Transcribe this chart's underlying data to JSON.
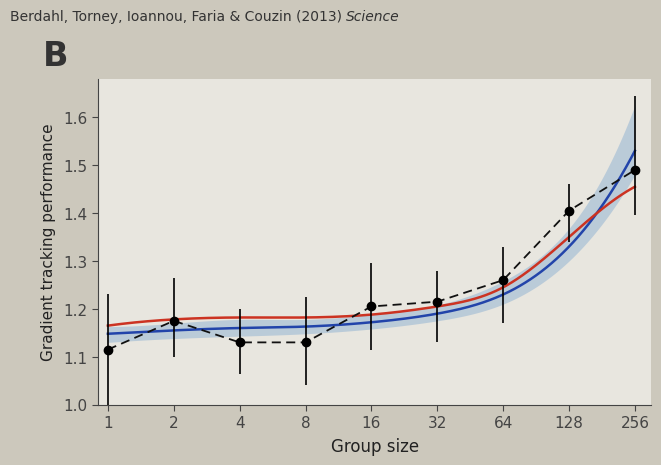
{
  "title_regular": "Berdahl, Torney, Ioannou, Faria & Couzin (2013) ",
  "title_italic": "Science",
  "panel_label": "B",
  "xlabel": "Group size",
  "ylabel": "Gradient tracking performance",
  "background_color": "#ccc8bc",
  "plot_background_color": "#e8e6df",
  "x_ticks": [
    1,
    2,
    4,
    8,
    16,
    32,
    64,
    128,
    256
  ],
  "ylim": [
    1.0,
    1.68
  ],
  "yticks": [
    1.0,
    1.1,
    1.2,
    1.3,
    1.4,
    1.5,
    1.6
  ],
  "data_points": {
    "x": [
      1,
      2,
      4,
      8,
      16,
      32,
      64,
      128,
      256
    ],
    "y": [
      1.115,
      1.175,
      1.13,
      1.13,
      1.205,
      1.215,
      1.26,
      1.405,
      1.49
    ],
    "yerr_low": [
      0.115,
      0.075,
      0.065,
      0.09,
      0.09,
      0.085,
      0.09,
      0.065,
      0.095
    ],
    "yerr_high": [
      0.115,
      0.09,
      0.07,
      0.095,
      0.09,
      0.065,
      0.07,
      0.055,
      0.155
    ]
  },
  "blue_line_color": "#2244aa",
  "red_line_color": "#cc3322",
  "blue_fill_color": "#6699cc",
  "blue_fill_alpha": 0.35,
  "dashed_line_color": "#111111",
  "blue_curve_base": [
    1.148,
    1.155,
    1.16,
    1.163,
    1.172,
    1.19,
    1.23,
    1.33,
    1.53
  ],
  "red_curve_base": [
    1.165,
    1.178,
    1.182,
    1.182,
    1.188,
    1.205,
    1.245,
    1.35,
    1.455
  ],
  "blue_ci_low": [
    1.13,
    1.138,
    1.143,
    1.148,
    1.158,
    1.175,
    1.21,
    1.3,
    1.48
  ],
  "blue_ci_high": [
    1.163,
    1.17,
    1.178,
    1.178,
    1.188,
    1.208,
    1.258,
    1.368,
    1.625
  ]
}
